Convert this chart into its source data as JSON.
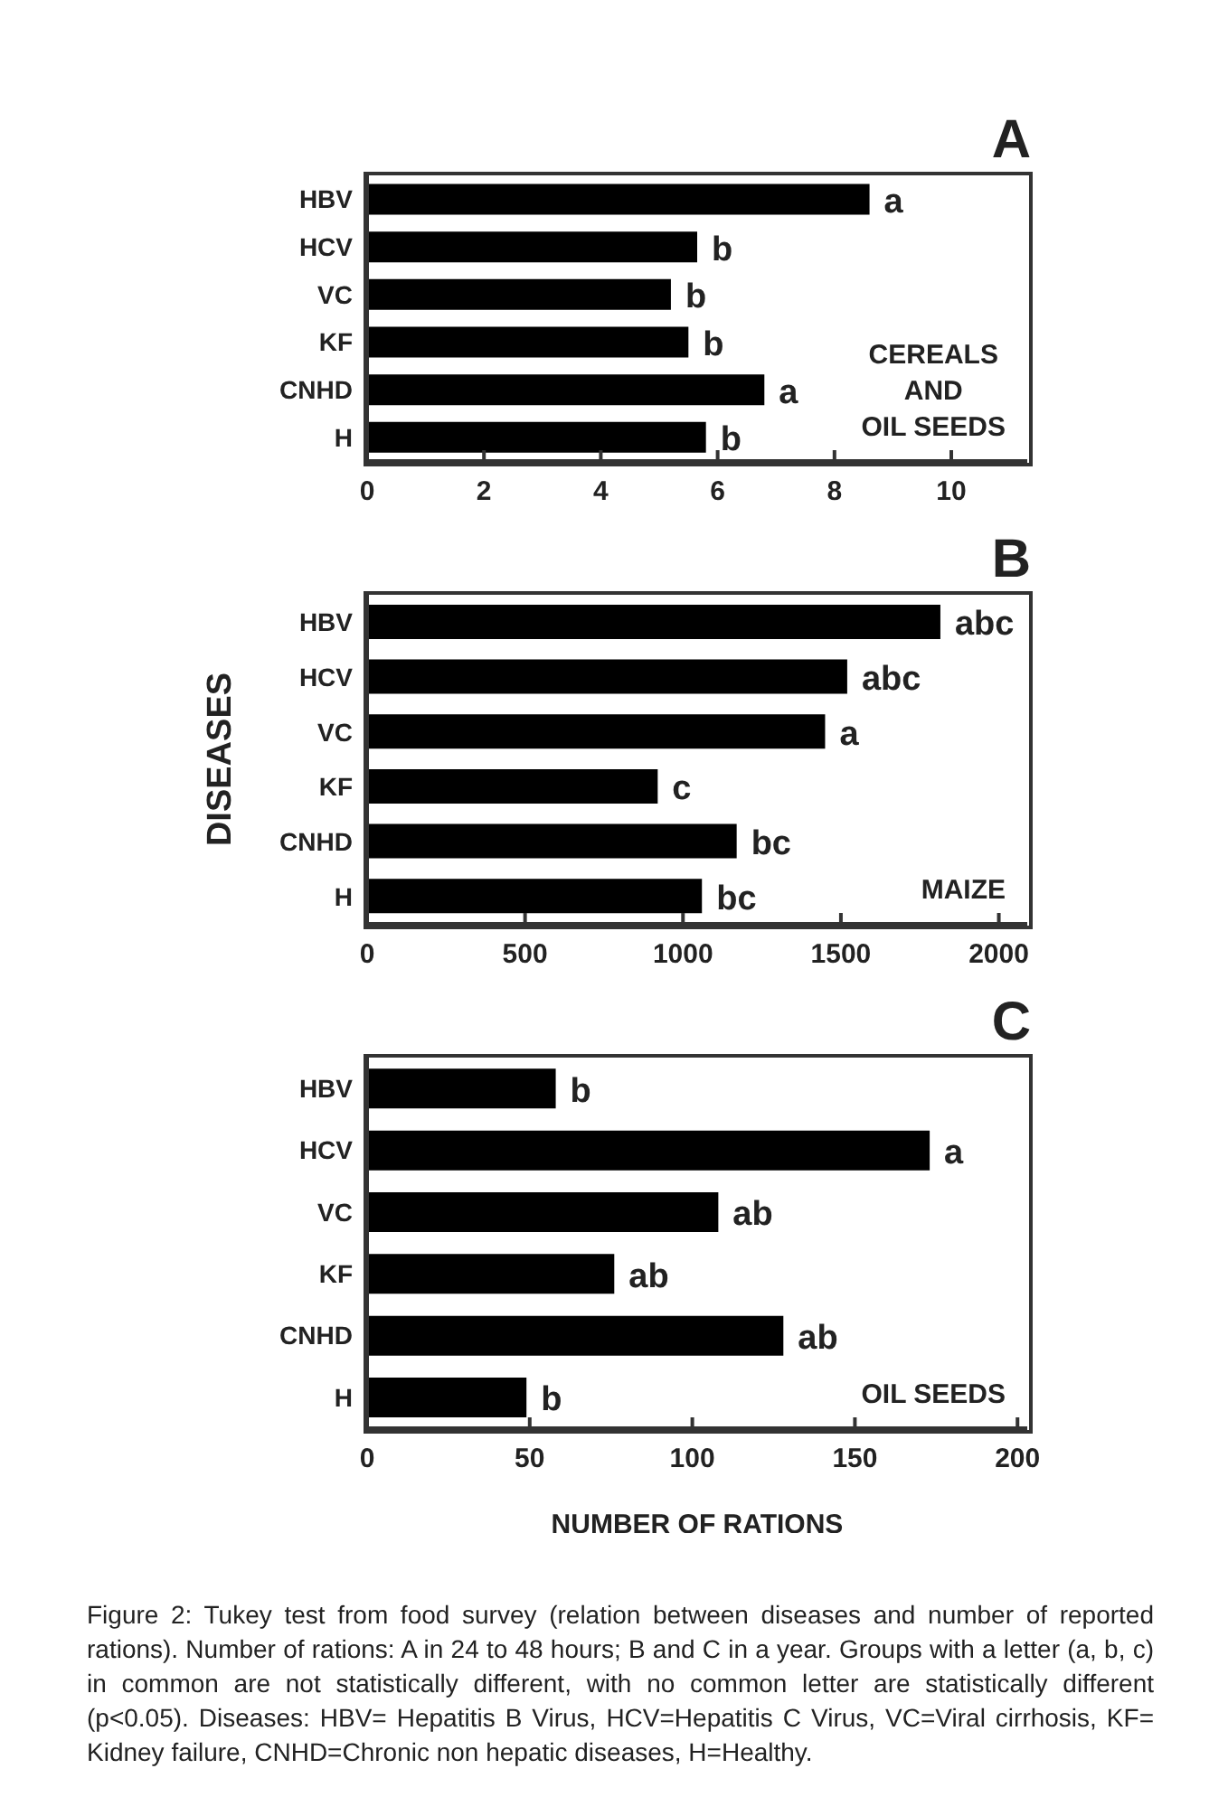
{
  "chart_data": [
    {
      "type": "bar",
      "orientation": "horizontal",
      "title": "A",
      "categories": [
        "HBV",
        "HCV",
        "VC",
        "KF",
        "CNHD",
        "H"
      ],
      "values": [
        8.6,
        5.65,
        5.2,
        5.5,
        6.8,
        5.8
      ],
      "value_labels": [
        "a",
        "b",
        "b",
        "b",
        "a",
        "b"
      ],
      "color": "#000000",
      "xlim": [
        0,
        11.3
      ],
      "xticks": [
        0,
        2,
        4,
        6,
        8,
        10
      ],
      "grid": false,
      "legend": false,
      "annotations": [
        "CEREALS\nAND\nOIL SEEDS"
      ]
    },
    {
      "type": "bar",
      "orientation": "horizontal",
      "title": "B",
      "ylabel": "DISEASES",
      "categories": [
        "HBV",
        "HCV",
        "VC",
        "KF",
        "CNHD",
        "H"
      ],
      "values": [
        1815,
        1520,
        1450,
        920,
        1170,
        1060
      ],
      "value_labels": [
        "abc",
        "abc",
        "a",
        "c",
        "bc",
        "bc"
      ],
      "color": "#000000",
      "xlim": [
        0,
        2090
      ],
      "xticks": [
        0,
        500,
        1000,
        1500,
        2000
      ],
      "grid": false,
      "legend": false,
      "annotations": [
        "MAIZE"
      ]
    },
    {
      "type": "bar",
      "orientation": "horizontal",
      "title": "C",
      "xlabel": "NUMBER OF RATIONS",
      "categories": [
        "HBV",
        "HCV",
        "VC",
        "KF",
        "CNHD",
        "H"
      ],
      "values": [
        58,
        173,
        108,
        76,
        128,
        49
      ],
      "value_labels": [
        "b",
        "a",
        "ab",
        "ab",
        "ab",
        "b"
      ],
      "color": "#000000",
      "xlim": [
        0,
        203
      ],
      "xticks": [
        0,
        50,
        100,
        150,
        200
      ],
      "grid": false,
      "legend": false,
      "annotations": [
        "OIL SEEDS",
        "Figure 2: Tukey test from food survey (relation between diseases and number of reported rations). Number of rations: A in 24 to 48 hours; B and C in a year. Groups with a letter (a, b, c) in common are not statistically different, with no common letter are statistically different (p<0.05). Diseases: HBV= Hepatitis B Virus, HCV=Hepatitis C Virus, VC=Viral cirrhosis, KF= Kidney failure, CNHD=Chronic non hepatic diseases, H=Healthy."
      ]
    }
  ]
}
